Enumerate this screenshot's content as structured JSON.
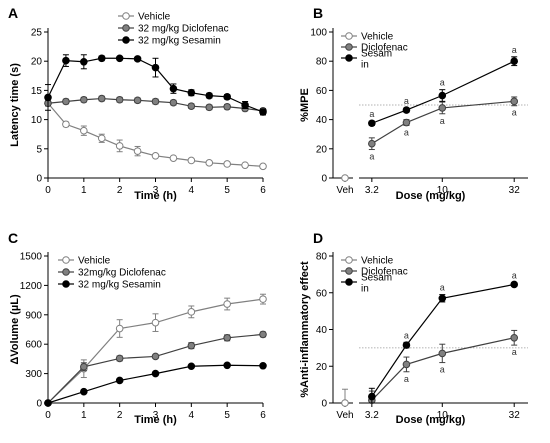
{
  "chart_data": [
    {
      "panel": "A",
      "type": "line",
      "xlabel": "Time (h)",
      "ylabel": "Latency time (s)",
      "xlim": [
        0,
        6
      ],
      "ylim": [
        0,
        25
      ],
      "xticks": [
        0,
        1,
        2,
        3,
        4,
        5,
        6
      ],
      "yticks": [
        0,
        5,
        10,
        15,
        20,
        25
      ],
      "legend_position": "top-center",
      "series": [
        {
          "name": "Vehicle",
          "marker": "open",
          "x": [
            0,
            0.5,
            1,
            1.5,
            2,
            2.5,
            3,
            3.5,
            4,
            4.5,
            5,
            5.5,
            6
          ],
          "y": [
            12.8,
            9.2,
            8.1,
            6.8,
            5.5,
            4.6,
            3.8,
            3.4,
            3.0,
            2.6,
            2.4,
            2.2,
            2.0
          ],
          "err": [
            0.5,
            0.4,
            0.8,
            0.7,
            1.0,
            0.8,
            0.3,
            0.3,
            0.3,
            0.3,
            0.3,
            0.2,
            0.2
          ]
        },
        {
          "name": "32 mg/kg Diclofenac",
          "marker": "gray",
          "x": [
            0,
            0.5,
            1,
            1.5,
            2,
            2.5,
            3,
            3.5,
            4,
            4.5,
            5,
            5.5,
            6
          ],
          "y": [
            12.8,
            13.1,
            13.4,
            13.6,
            13.4,
            13.3,
            13.1,
            12.9,
            12.3,
            12.1,
            12.2,
            11.9,
            11.5
          ],
          "err": [
            0.4,
            0.4,
            0.4,
            0.4,
            0.4,
            0.4,
            0.4,
            0.4,
            0.4,
            0.4,
            0.4,
            0.4,
            0.4
          ]
        },
        {
          "name": "32 mg/kg Sesamin",
          "marker": "black",
          "x": [
            0,
            0.5,
            1,
            1.5,
            2,
            2.5,
            3,
            3.5,
            4,
            4.5,
            5,
            5.5,
            6
          ],
          "y": [
            13.8,
            20.1,
            19.9,
            20.5,
            20.5,
            20.4,
            18.9,
            15.3,
            14.6,
            14.1,
            13.9,
            12.5,
            11.3
          ],
          "err": [
            2.2,
            1.0,
            1.2,
            0.4,
            0.3,
            0.3,
            1.6,
            0.8,
            0.5,
            0.4,
            0.4,
            0.6,
            0.5
          ]
        }
      ]
    },
    {
      "panel": "B",
      "type": "line",
      "xlabel": "Dose (mg/kg)",
      "ylabel": "%MPE",
      "ylim": [
        0,
        100
      ],
      "yticks": [
        0,
        20,
        40,
        60,
        80,
        100
      ],
      "x_categories": [
        "Veh",
        "3.2",
        "10",
        "32"
      ],
      "x_log": true,
      "reference_line": 50,
      "legend_position": "top-left",
      "legend_entries": [
        "Vehicle",
        "Diclofenac",
        "Sesamin"
      ],
      "legend_lines": [
        "Vehicle",
        "Diclofenac",
        "Sesam",
        "in"
      ],
      "vehicle": {
        "x": 0,
        "y": 0,
        "err": 0
      },
      "series": [
        {
          "name": "Diclofenac",
          "marker": "gray",
          "x": [
            3.2,
            5.6,
            10,
            32
          ],
          "y": [
            23.5,
            38.0,
            48.0,
            52.5
          ],
          "err": [
            4.0,
            2.0,
            4.0,
            3.0
          ],
          "annotations": [
            "a",
            "a",
            "a",
            "a"
          ]
        },
        {
          "name": "Sesamin",
          "marker": "black",
          "x": [
            3.2,
            5.6,
            10,
            32
          ],
          "y": [
            37.5,
            46.5,
            56.5,
            80.0
          ],
          "err": [
            1.5,
            1.5,
            4.0,
            3.0
          ],
          "annotations": [
            "a",
            "a",
            "a",
            "a"
          ]
        }
      ]
    },
    {
      "panel": "C",
      "type": "line",
      "xlabel": "Time (h)",
      "ylabel": "ΔVolume (µL)",
      "xlim": [
        0,
        6
      ],
      "ylim": [
        0,
        1500
      ],
      "xticks": [
        0,
        1,
        2,
        3,
        4,
        5,
        6
      ],
      "yticks": [
        0,
        300,
        600,
        900,
        1200,
        1500
      ],
      "legend_position": "top-left",
      "series": [
        {
          "name": "Vehicle",
          "marker": "open",
          "x": [
            0,
            1,
            2,
            3,
            4,
            5,
            6
          ],
          "y": [
            0,
            350,
            760,
            820,
            930,
            1010,
            1060
          ],
          "err": [
            0,
            90,
            90,
            90,
            60,
            60,
            50
          ]
        },
        {
          "name": "32mg/kg Diclofenac",
          "marker": "gray",
          "x": [
            0,
            1,
            2,
            3,
            4,
            5,
            6
          ],
          "y": [
            0,
            370,
            455,
            475,
            585,
            665,
            700
          ],
          "err": [
            0,
            40,
            25,
            20,
            30,
            30,
            25
          ]
        },
        {
          "name": "32 mg/kg Sesamin",
          "marker": "black",
          "x": [
            0,
            1,
            2,
            3,
            4,
            5,
            6
          ],
          "y": [
            0,
            115,
            230,
            300,
            375,
            385,
            380
          ],
          "err": [
            0,
            10,
            10,
            10,
            10,
            10,
            10
          ]
        }
      ]
    },
    {
      "panel": "D",
      "type": "line",
      "xlabel": "Dose (mg/kg)",
      "ylabel": "%Anti-inflammatory effect",
      "ylim": [
        0,
        80
      ],
      "yticks": [
        0,
        20,
        40,
        60,
        80
      ],
      "x_categories": [
        "Veh",
        "3.2",
        "10",
        "32"
      ],
      "x_log": true,
      "reference_line": 30,
      "legend_position": "top-left",
      "legend_entries": [
        "Vehicle",
        "Diclofenac",
        "Sesamin"
      ],
      "legend_lines": [
        "Vehicle",
        "Diclofenac",
        "Sesam",
        "in"
      ],
      "vehicle": {
        "x": 0,
        "y": 0,
        "err": 7.5
      },
      "series": [
        {
          "name": "Diclofenac",
          "marker": "gray",
          "x": [
            3.2,
            5.6,
            10,
            32
          ],
          "y": [
            1.5,
            21.0,
            27.0,
            35.5
          ],
          "err": [
            5.0,
            4.0,
            5.0,
            4.0
          ],
          "annotations": [
            "",
            "a",
            "a",
            "a"
          ]
        },
        {
          "name": "Sesamin",
          "marker": "black",
          "x": [
            3.2,
            5.6,
            10,
            32
          ],
          "y": [
            3.5,
            31.5,
            57.0,
            64.5
          ],
          "err": [
            4.5,
            1.5,
            2.0,
            1.0
          ],
          "annotations": [
            "",
            "a",
            "a",
            "a"
          ]
        }
      ]
    }
  ],
  "colors": {
    "open_fill": "#ffffff",
    "open_stroke": "#808080",
    "gray_fill": "#808080",
    "gray_stroke": "#404040",
    "black_fill": "#000000",
    "black_stroke": "#000000"
  }
}
